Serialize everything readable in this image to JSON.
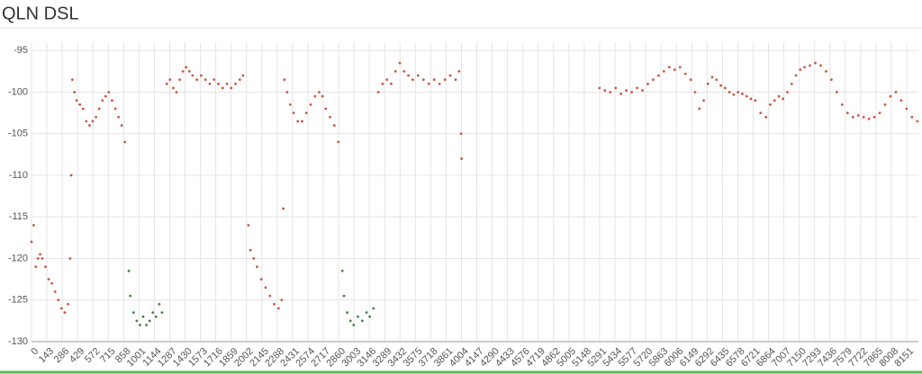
{
  "chart_data": {
    "type": "scatter",
    "title": "QLN DSL",
    "xlim": [
      0,
      8260
    ],
    "ylim": [
      -130,
      -94
    ],
    "xticks": [
      0,
      143,
      286,
      429,
      572,
      715,
      858,
      1001,
      1144,
      1287,
      1430,
      1573,
      1716,
      1859,
      2002,
      2145,
      2288,
      2431,
      2574,
      2717,
      2860,
      3003,
      3146,
      3289,
      3432,
      3575,
      3718,
      3861,
      4004,
      4147,
      4290,
      4433,
      4576,
      4719,
      4862,
      5005,
      5148,
      5291,
      5434,
      5577,
      5720,
      5863,
      6006,
      6149,
      6292,
      6435,
      6578,
      6721,
      6864,
      7007,
      7150,
      7293,
      7436,
      7579,
      7722,
      7865,
      8008,
      8151
    ],
    "yticks": [
      -95,
      -100,
      -105,
      -110,
      -115,
      -120,
      -125,
      -130
    ],
    "grid": true,
    "series": [
      {
        "color": "#c8553d",
        "x": [
          0,
          20,
          40,
          60,
          80,
          100,
          130,
          160,
          190,
          220,
          250,
          280,
          310,
          340,
          360,
          370,
          380,
          400,
          420,
          450,
          480,
          510,
          540,
          570,
          600,
          630,
          660,
          690,
          720,
          750,
          780,
          810,
          840,
          870,
          1260,
          1290,
          1320,
          1350,
          1380,
          1410,
          1440,
          1470,
          1500,
          1540,
          1580,
          1620,
          1660,
          1700,
          1740,
          1780,
          1820,
          1860,
          1900,
          1940,
          1970,
          2020,
          2040,
          2070,
          2100,
          2140,
          2180,
          2220,
          2260,
          2300,
          2330,
          2345,
          2355,
          2380,
          2410,
          2440,
          2480,
          2520,
          2560,
          2600,
          2640,
          2680,
          2710,
          2740,
          2780,
          2820,
          2858,
          3230,
          3270,
          3310,
          3350,
          3390,
          3430,
          3470,
          3510,
          3550,
          3600,
          3650,
          3700,
          3750,
          3800,
          3850,
          3900,
          3950,
          3982,
          4000,
          4005,
          5290,
          5340,
          5390,
          5440,
          5490,
          5540,
          5590,
          5640,
          5690,
          5740,
          5790,
          5840,
          5890,
          5940,
          5990,
          6040,
          6090,
          6140,
          6180,
          6220,
          6260,
          6300,
          6340,
          6380,
          6420,
          6460,
          6500,
          6540,
          6580,
          6620,
          6660,
          6700,
          6740,
          6790,
          6840,
          6880,
          6920,
          6960,
          7000,
          7040,
          7080,
          7120,
          7160,
          7200,
          7250,
          7300,
          7350,
          7400,
          7450,
          7500,
          7550,
          7600,
          7650,
          7700,
          7750,
          7800,
          7850,
          7900,
          7950,
          8000,
          8050,
          8100,
          8150,
          8200,
          8250
        ],
        "values": [
          -118,
          -116,
          -121,
          -120,
          -119.5,
          -120,
          -121,
          -122.5,
          -123,
          -124,
          -125,
          -126,
          -126.5,
          -125.5,
          -120,
          -110,
          -98.5,
          -100,
          -101,
          -101.5,
          -102,
          -103.5,
          -104,
          -103.5,
          -103,
          -102,
          -101,
          -100.5,
          -100,
          -101,
          -102,
          -103,
          -104,
          -106,
          -99,
          -98.5,
          -99.5,
          -100,
          -98.5,
          -97.5,
          -97,
          -97.5,
          -98,
          -98.5,
          -98,
          -98.5,
          -99,
          -98.5,
          -99,
          -99.5,
          -99,
          -99.5,
          -99,
          -98.5,
          -98,
          -116,
          -119,
          -120,
          -121,
          -122.5,
          -123.5,
          -124.5,
          -125.5,
          -126,
          -125,
          -114,
          -98.5,
          -100,
          -101.5,
          -102.5,
          -103.5,
          -103.5,
          -102.5,
          -101.5,
          -100.5,
          -100,
          -100.5,
          -102,
          -103,
          -104,
          -106,
          -100,
          -99,
          -98.5,
          -99,
          -97.5,
          -96.5,
          -97.5,
          -98,
          -98.5,
          -98,
          -98.5,
          -99,
          -98.5,
          -99,
          -98.5,
          -98,
          -98.5,
          -97.5,
          -105,
          -108,
          -99.5,
          -99.8,
          -100,
          -99.5,
          -100.2,
          -99.8,
          -100,
          -99.5,
          -99.8,
          -99,
          -98.5,
          -98,
          -97.5,
          -97,
          -97.3,
          -97,
          -97.8,
          -98.5,
          -100,
          -102,
          -101,
          -99,
          -98.2,
          -98.5,
          -99.2,
          -99.5,
          -100,
          -100.3,
          -100,
          -100.2,
          -100.5,
          -100.8,
          -101,
          -102.5,
          -103,
          -101.5,
          -101,
          -100.5,
          -100.8,
          -100,
          -99,
          -98,
          -97.3,
          -97,
          -96.8,
          -96.5,
          -96.8,
          -97.5,
          -98.5,
          -100,
          -101.5,
          -102.5,
          -103,
          -102.8,
          -103,
          -103.2,
          -103,
          -102.5,
          -101.5,
          -100.5,
          -100,
          -101,
          -102,
          -103,
          -103.5
        ]
      },
      {
        "color": "#3f7f3f",
        "x": [
          906,
          920,
          950,
          980,
          1010,
          1040,
          1070,
          1100,
          1130,
          1160,
          1190,
          1215,
          2895,
          2910,
          2940,
          2970,
          3000,
          3040,
          3080,
          3120,
          3150,
          3185
        ],
        "values": [
          -121.5,
          -124.5,
          -126.5,
          -127.5,
          -128,
          -127,
          -128,
          -127.5,
          -126.5,
          -127,
          -125.5,
          -126.5,
          -121.5,
          -124.5,
          -126.5,
          -127.5,
          -128,
          -127,
          -127.5,
          -126.5,
          -127,
          -126
        ]
      }
    ]
  }
}
